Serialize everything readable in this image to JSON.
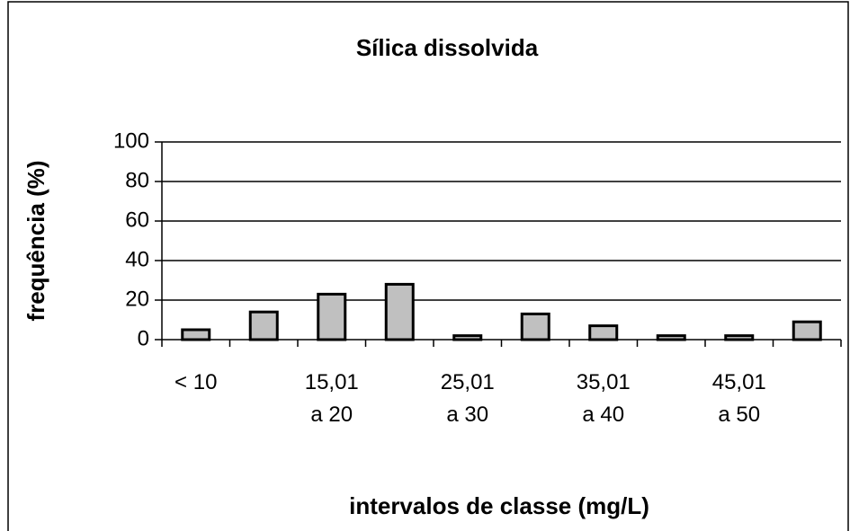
{
  "chart_data": {
    "type": "bar",
    "title": "Sílica dissolvida",
    "y_label": "frequência (%)",
    "x_label": "intervalos de classe (mg/L)",
    "categories": [
      "< 10",
      null,
      "15,01\na 20",
      null,
      "25,01\na 30",
      null,
      "35,01\na 40",
      null,
      "45,01\na 50",
      null
    ],
    "values": [
      5,
      14,
      23,
      28,
      2,
      13,
      7,
      2,
      2,
      9
    ],
    "color": "#c0c0c0",
    "ylim": [
      0,
      100
    ],
    "yticks": [
      0,
      20,
      40,
      60,
      80,
      100
    ],
    "grid": true
  }
}
